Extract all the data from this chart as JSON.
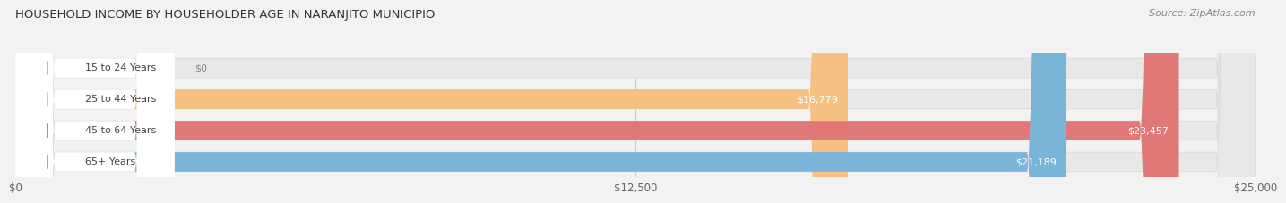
{
  "title": "HOUSEHOLD INCOME BY HOUSEHOLDER AGE IN NARANJITO MUNICIPIO",
  "source": "Source: ZipAtlas.com",
  "categories": [
    "15 to 24 Years",
    "25 to 44 Years",
    "45 to 64 Years",
    "65+ Years"
  ],
  "values": [
    0,
    16779,
    23457,
    21189
  ],
  "bar_colors": [
    "#f4a0b5",
    "#f5c080",
    "#e07878",
    "#7ab4d8"
  ],
  "value_labels": [
    "$0",
    "$16,779",
    "$23,457",
    "$21,189"
  ],
  "xlim": [
    0,
    25000
  ],
  "xticks": [
    0,
    12500,
    25000
  ],
  "xtick_labels": [
    "$0",
    "$12,500",
    "$25,000"
  ],
  "bg_color": "#f2f2f2",
  "bar_bg_color": "#e8e8e8",
  "label_bg_color": "#ffffff",
  "figsize": [
    14.06,
    2.33
  ],
  "dpi": 100
}
